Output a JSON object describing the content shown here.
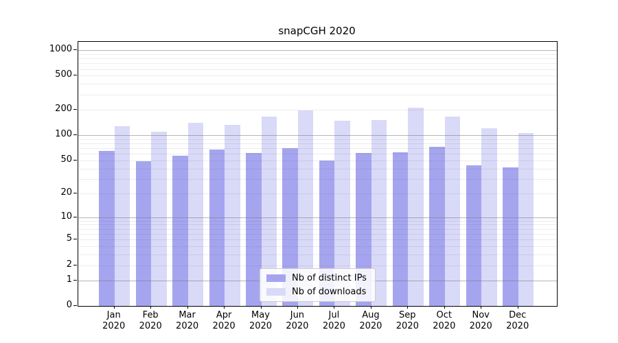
{
  "chart_data": {
    "type": "bar",
    "title": "snapCGH 2020",
    "months": [
      "Jan",
      "Feb",
      "Mar",
      "Apr",
      "May",
      "Jun",
      "Jul",
      "Aug",
      "Sep",
      "Oct",
      "Nov",
      "Dec"
    ],
    "year": "2020",
    "categories": [
      "Jan 2020",
      "Feb 2020",
      "Mar 2020",
      "Apr 2020",
      "May 2020",
      "Jun 2020",
      "Jul 2020",
      "Aug 2020",
      "Sep 2020",
      "Oct 2020",
      "Nov 2020",
      "Dec 2020"
    ],
    "series": [
      {
        "name": "Nb of distinct IPs",
        "color": "#a5a5ef",
        "values": [
          65,
          49,
          57,
          67,
          61,
          70,
          50,
          61,
          62,
          72,
          44,
          41
        ]
      },
      {
        "name": "Nb of downloads",
        "color": "#d9d9f8",
        "values": [
          127,
          110,
          139,
          132,
          165,
          194,
          148,
          150,
          210,
          165,
          121,
          105
        ]
      }
    ],
    "y_ticks": [
      0,
      1,
      2,
      5,
      10,
      20,
      50,
      100,
      200,
      500,
      1000
    ],
    "major_gridlines": [
      1,
      10,
      100,
      1000
    ],
    "y_scale": "log1p",
    "y_max": 1250,
    "ylim": [
      0,
      1250
    ],
    "grid": "horizontal major+minor",
    "legend_position": "inside lower center",
    "background_color": "#ffffff",
    "grid_major_color": "#b0b0b0",
    "grid_minor_color": "#ebebeb"
  }
}
